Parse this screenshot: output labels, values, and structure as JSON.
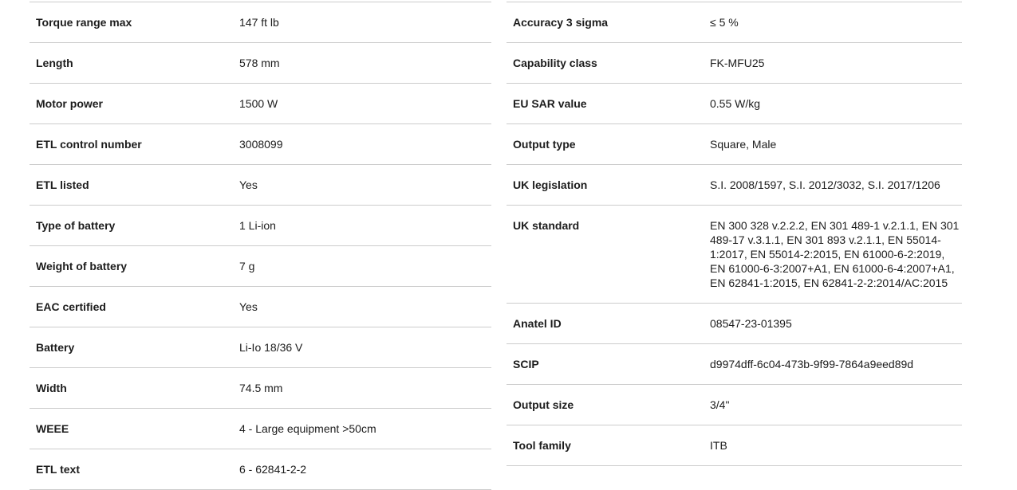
{
  "page": {
    "background": "#ffffff",
    "border_color": "#cccccc",
    "text_color": "#1c1c1c"
  },
  "spec_tables": [
    {
      "id": "left",
      "rows": [
        {
          "label": "Torque range max",
          "value": "147 ft lb"
        },
        {
          "label": "Length",
          "value": "578 mm"
        },
        {
          "label": "Motor power",
          "value": "1500 W"
        },
        {
          "label": "ETL control number",
          "value": "3008099"
        },
        {
          "label": "ETL listed",
          "value": "Yes"
        },
        {
          "label": "Type of battery",
          "value": "1 Li-ion"
        },
        {
          "label": "Weight of battery",
          "value": "7 g"
        },
        {
          "label": "EAC certified",
          "value": "Yes"
        },
        {
          "label": "Battery",
          "value": "Li-Io 18/36 V"
        },
        {
          "label": "Width",
          "value": "74.5 mm"
        },
        {
          "label": "WEEE",
          "value": "4 - Large equipment >50cm"
        },
        {
          "label": "ETL text",
          "value": "6 - 62841-2-2"
        }
      ]
    },
    {
      "id": "right",
      "rows": [
        {
          "label": "Accuracy 3 sigma",
          "value": "≤ 5 %"
        },
        {
          "label": "Capability class",
          "value": "FK-MFU25"
        },
        {
          "label": "EU SAR value",
          "value": "0.55 W/kg"
        },
        {
          "label": "Output type",
          "value": "Square, Male"
        },
        {
          "label": "UK legislation",
          "value": "S.I. 2008/1597, S.I. 2012/3032, S.I. 2017/1206"
        },
        {
          "label": "UK standard",
          "value": "EN 300 328 v.2.2.2, EN 301 489-1 v.2.1.1, EN 301 489-17 v.3.1.1, EN 301 893 v.2.1.1, EN 55014-1:2017, EN 55014-2:2015, EN 61000-6-2:2019, EN 61000-6-3:2007+A1, EN 61000-6-4:2007+A1, EN 62841-1:2015, EN 62841-2-2:2014/AC:2015"
        },
        {
          "label": "Anatel ID",
          "value": "08547-23-01395"
        },
        {
          "label": "SCIP",
          "value": "d9974dff-6c04-473b-9f99-7864a9eed89d"
        },
        {
          "label": "Output size",
          "value": "3/4\""
        },
        {
          "label": "Tool family",
          "value": "ITB"
        }
      ]
    }
  ]
}
